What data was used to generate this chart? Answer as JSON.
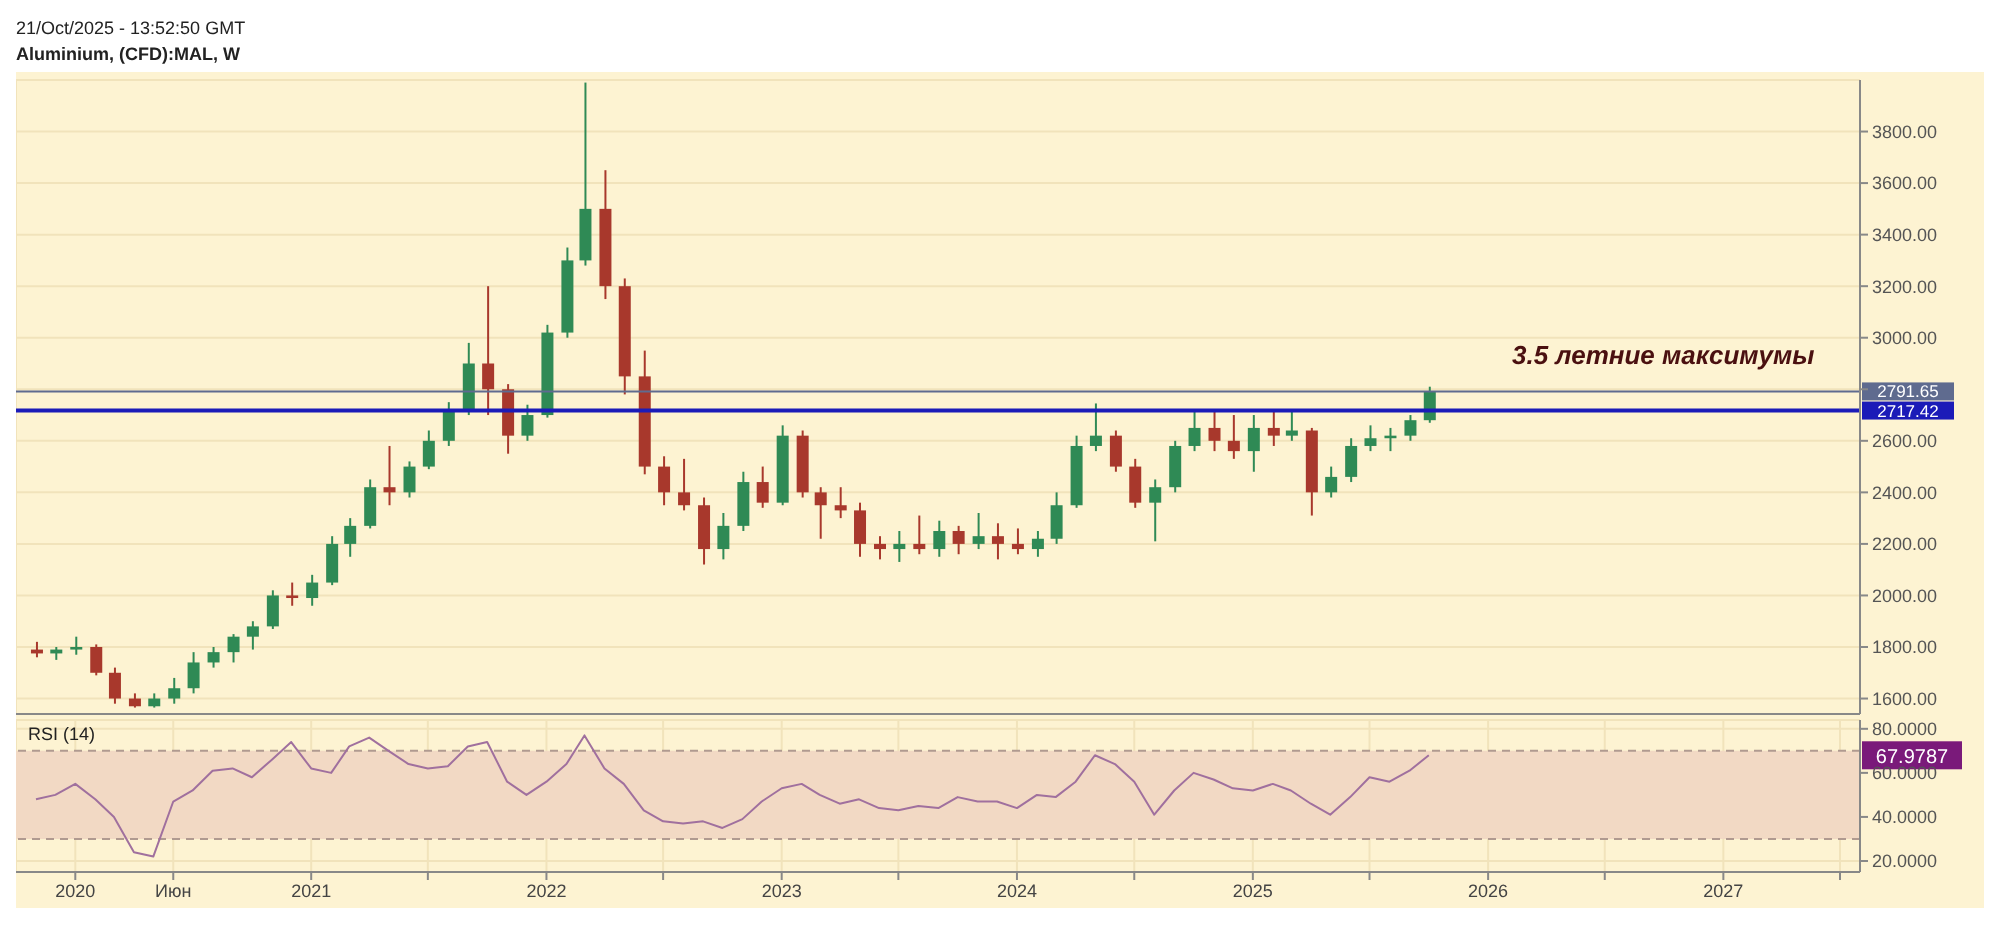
{
  "chart_data": [
    {
      "type": "candlestick",
      "title": "Aluminium, (CFD):MAL, W",
      "subtitle": "21/Oct/2025 - 13:52:50 GMT",
      "x": [
        "2019-11",
        "2019-12",
        "2020-01",
        "2020-02",
        "2020-03",
        "2020-04",
        "2020-05",
        "2020-06",
        "2020-07",
        "2020-08",
        "2020-09",
        "2020-10",
        "2020-11",
        "2020-12",
        "2021-01",
        "2021-02",
        "2021-03",
        "2021-04",
        "2021-05",
        "2021-06",
        "2021-07",
        "2021-08",
        "2021-09",
        "2021-10",
        "2021-11",
        "2021-12",
        "2022-01",
        "2022-02",
        "2022-03",
        "2022-04",
        "2022-05",
        "2022-06",
        "2022-07",
        "2022-08",
        "2022-09",
        "2022-10",
        "2022-11",
        "2022-12",
        "2023-01",
        "2023-02",
        "2023-03",
        "2023-04",
        "2023-05",
        "2023-06",
        "2023-07",
        "2023-08",
        "2023-09",
        "2023-10",
        "2023-11",
        "2023-12",
        "2024-01",
        "2024-02",
        "2024-03",
        "2024-04",
        "2024-05",
        "2024-06",
        "2024-07",
        "2024-08",
        "2024-09",
        "2024-10",
        "2024-11",
        "2024-12",
        "2025-01",
        "2025-02",
        "2025-03",
        "2025-04",
        "2025-05",
        "2025-06",
        "2025-07",
        "2025-08",
        "2025-09",
        "2025-10"
      ],
      "ohlc": [
        [
          1790,
          1820,
          1760,
          1775
        ],
        [
          1775,
          1800,
          1750,
          1790
        ],
        [
          1790,
          1840,
          1770,
          1800
        ],
        [
          1800,
          1810,
          1690,
          1700
        ],
        [
          1700,
          1720,
          1580,
          1600
        ],
        [
          1600,
          1620,
          1565,
          1570
        ],
        [
          1570,
          1620,
          1565,
          1600
        ],
        [
          1600,
          1680,
          1580,
          1640
        ],
        [
          1640,
          1780,
          1620,
          1740
        ],
        [
          1740,
          1800,
          1720,
          1780
        ],
        [
          1780,
          1850,
          1740,
          1840
        ],
        [
          1840,
          1900,
          1790,
          1880
        ],
        [
          1880,
          2020,
          1870,
          2000
        ],
        [
          2000,
          2050,
          1960,
          1990
        ],
        [
          1990,
          2080,
          1960,
          2050
        ],
        [
          2050,
          2230,
          2040,
          2200
        ],
        [
          2200,
          2300,
          2150,
          2270
        ],
        [
          2270,
          2450,
          2260,
          2420
        ],
        [
          2420,
          2580,
          2350,
          2400
        ],
        [
          2400,
          2520,
          2380,
          2500
        ],
        [
          2500,
          2640,
          2490,
          2600
        ],
        [
          2600,
          2750,
          2580,
          2720
        ],
        [
          2720,
          2980,
          2700,
          2900
        ],
        [
          2900,
          3200,
          2700,
          2800
        ],
        [
          2800,
          2820,
          2550,
          2620
        ],
        [
          2620,
          2740,
          2600,
          2700
        ],
        [
          2700,
          3050,
          2690,
          3020
        ],
        [
          3020,
          3350,
          3000,
          3300
        ],
        [
          3300,
          3990,
          3280,
          3500
        ],
        [
          3500,
          3650,
          3150,
          3200
        ],
        [
          3200,
          3230,
          2780,
          2850
        ],
        [
          2850,
          2950,
          2470,
          2500
        ],
        [
          2500,
          2540,
          2350,
          2400
        ],
        [
          2400,
          2530,
          2330,
          2350
        ],
        [
          2350,
          2380,
          2120,
          2180
        ],
        [
          2180,
          2320,
          2140,
          2270
        ],
        [
          2270,
          2480,
          2250,
          2440
        ],
        [
          2440,
          2500,
          2340,
          2360
        ],
        [
          2360,
          2660,
          2350,
          2620
        ],
        [
          2620,
          2640,
          2380,
          2400
        ],
        [
          2400,
          2420,
          2220,
          2350
        ],
        [
          2350,
          2420,
          2300,
          2330
        ],
        [
          2330,
          2360,
          2150,
          2200
        ],
        [
          2200,
          2230,
          2140,
          2180
        ],
        [
          2180,
          2250,
          2130,
          2200
        ],
        [
          2200,
          2310,
          2160,
          2180
        ],
        [
          2180,
          2290,
          2150,
          2250
        ],
        [
          2250,
          2270,
          2160,
          2200
        ],
        [
          2200,
          2320,
          2180,
          2230
        ],
        [
          2230,
          2280,
          2140,
          2200
        ],
        [
          2200,
          2260,
          2160,
          2180
        ],
        [
          2180,
          2250,
          2150,
          2220
        ],
        [
          2220,
          2400,
          2200,
          2350
        ],
        [
          2350,
          2620,
          2340,
          2580
        ],
        [
          2580,
          2745,
          2560,
          2620
        ],
        [
          2620,
          2640,
          2480,
          2500
        ],
        [
          2500,
          2530,
          2340,
          2360
        ],
        [
          2360,
          2450,
          2210,
          2420
        ],
        [
          2420,
          2600,
          2400,
          2580
        ],
        [
          2580,
          2720,
          2560,
          2650
        ],
        [
          2650,
          2720,
          2560,
          2600
        ],
        [
          2600,
          2700,
          2530,
          2560
        ],
        [
          2560,
          2700,
          2480,
          2650
        ],
        [
          2650,
          2720,
          2580,
          2620
        ],
        [
          2620,
          2720,
          2600,
          2640
        ],
        [
          2640,
          2650,
          2310,
          2400
        ],
        [
          2400,
          2500,
          2380,
          2460
        ],
        [
          2460,
          2610,
          2440,
          2580
        ],
        [
          2580,
          2660,
          2560,
          2610
        ],
        [
          2610,
          2650,
          2560,
          2620
        ],
        [
          2620,
          2700,
          2600,
          2680
        ],
        [
          2680,
          2810,
          2670,
          2791.65
        ]
      ],
      "xlim": [
        "2019-10",
        "2027-08"
      ],
      "ylim": [
        1540,
        4000
      ],
      "yticks": [
        {
          "value": 1600,
          "label": "1600.00"
        },
        {
          "value": 1800,
          "label": "1800.00"
        },
        {
          "value": 2000,
          "label": "2000.00"
        },
        {
          "value": 2200,
          "label": "2200.00"
        },
        {
          "value": 2400,
          "label": "2400.00"
        },
        {
          "value": 2600,
          "label": "2600.00"
        },
        {
          "value": 2800,
          "label": null
        },
        {
          "value": 3000,
          "label": "3000.00"
        },
        {
          "value": 3200,
          "label": "3200.00"
        },
        {
          "value": 3400,
          "label": "3400.00"
        },
        {
          "value": 3600,
          "label": "3600.00"
        },
        {
          "value": 3800,
          "label": "3800.00"
        }
      ],
      "tick_labels": "y",
      "grid": true,
      "ref_lines": [
        {
          "axis": "y",
          "value": 2791.65,
          "label": "2791.65",
          "color": "#5f6b8f"
        },
        {
          "axis": "y",
          "value": 2717.42,
          "label": "2717.42",
          "color": "#1b1bb8"
        }
      ],
      "annotations": [
        "3.5 летние максимумы"
      ]
    },
    {
      "type": "line",
      "title": "RSI (14)",
      "x": [
        "2019-11",
        "2019-12",
        "2020-01",
        "2020-02",
        "2020-03",
        "2020-04",
        "2020-05",
        "2020-06",
        "2020-07",
        "2020-08",
        "2020-09",
        "2020-10",
        "2020-11",
        "2020-12",
        "2021-01",
        "2021-02",
        "2021-03",
        "2021-04",
        "2021-05",
        "2021-06",
        "2021-07",
        "2021-08",
        "2021-09",
        "2021-10",
        "2021-11",
        "2021-12",
        "2022-01",
        "2022-02",
        "2022-03",
        "2022-04",
        "2022-05",
        "2022-06",
        "2022-07",
        "2022-08",
        "2022-09",
        "2022-10",
        "2022-11",
        "2022-12",
        "2023-01",
        "2023-02",
        "2023-03",
        "2023-04",
        "2023-05",
        "2023-06",
        "2023-07",
        "2023-08",
        "2023-09",
        "2023-10",
        "2023-11",
        "2023-12",
        "2024-01",
        "2024-02",
        "2024-03",
        "2024-04",
        "2024-05",
        "2024-06",
        "2024-07",
        "2024-08",
        "2024-09",
        "2024-10",
        "2024-11",
        "2024-12",
        "2025-01",
        "2025-02",
        "2025-03",
        "2025-04",
        "2025-05",
        "2025-06",
        "2025-07",
        "2025-08",
        "2025-09",
        "2025-10"
      ],
      "series": [
        {
          "color": "#a0709e",
          "values": [
            48,
            50,
            55,
            48,
            40,
            24,
            22,
            47,
            52,
            61,
            62,
            58,
            66,
            74,
            62,
            60,
            72,
            76,
            70,
            64,
            62,
            63,
            72,
            74,
            56,
            50,
            56,
            64,
            77,
            62,
            55,
            43,
            38,
            37,
            38,
            35,
            39,
            47,
            53,
            55,
            50,
            46,
            48,
            44,
            43,
            45,
            44,
            49,
            47,
            47,
            44,
            50,
            49,
            56,
            68,
            64,
            56,
            41,
            52,
            60,
            57,
            53,
            52,
            55,
            52,
            46,
            41,
            49,
            58,
            56,
            61,
            67.9787
          ]
        }
      ],
      "marker": "none",
      "xlim": [
        "2019-10",
        "2027-08"
      ],
      "xticks": [
        {
          "value": "2020",
          "label": "2020"
        },
        {
          "value": "2020-06",
          "label": "Июн"
        },
        {
          "value": "2021",
          "label": "2021"
        },
        {
          "value": "2021-07",
          "label": null
        },
        {
          "value": "2022",
          "label": "2022"
        },
        {
          "value": "2022-07",
          "label": null
        },
        {
          "value": "2023",
          "label": "2023"
        },
        {
          "value": "2023-07",
          "label": null
        },
        {
          "value": "2024",
          "label": "2024"
        },
        {
          "value": "2024-07",
          "label": null
        },
        {
          "value": "2025",
          "label": "2025"
        },
        {
          "value": "2025-07",
          "label": null
        },
        {
          "value": "2026",
          "label": "2026"
        },
        {
          "value": "2026-07",
          "label": null
        },
        {
          "value": "2027",
          "label": "2027"
        },
        {
          "value": "2027-07",
          "label": null
        }
      ],
      "ylim": [
        15,
        84
      ],
      "yticks": [
        {
          "value": 20,
          "label": "20.0000"
        },
        {
          "value": 40,
          "label": "40.0000"
        },
        {
          "value": 60,
          "label": "60.0000"
        },
        {
          "value": 80,
          "label": "80.0000"
        }
      ],
      "grid": true,
      "ref_lines": [
        {
          "axis": "y",
          "value": 70,
          "color": "#b09a90",
          "line_style": "dashed"
        },
        {
          "axis": "y",
          "value": 30,
          "color": "#b09a90",
          "line_style": "dashed"
        }
      ],
      "bands": [
        {
          "axis": "y",
          "from": 30,
          "to": 70,
          "color": "#f2d9c4"
        }
      ],
      "annotations": [
        "67.9787"
      ]
    }
  ]
}
